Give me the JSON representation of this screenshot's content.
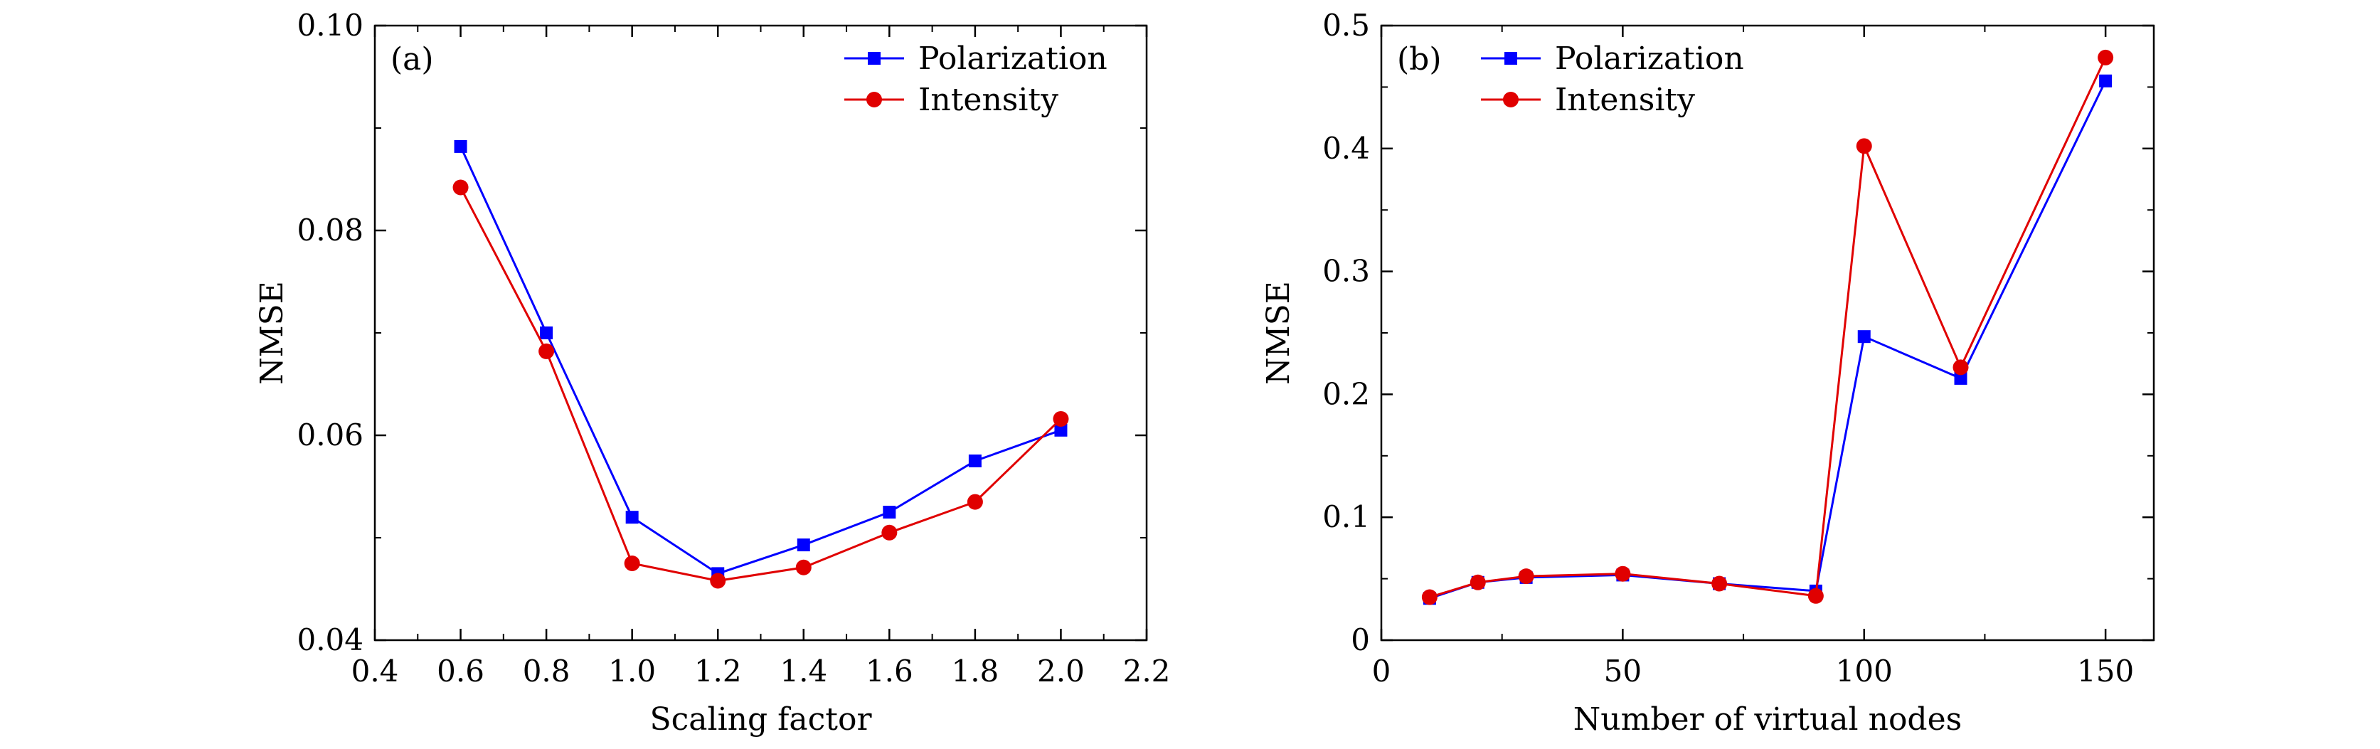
{
  "chart_data": [
    {
      "type": "line",
      "panel_label": "(a)",
      "xlabel": "Scaling factor",
      "ylabel": "NMSE",
      "xlim": [
        0.4,
        2.2
      ],
      "ylim": [
        0.04,
        0.1
      ],
      "xticks": [
        "0.4",
        "0.6",
        "0.8",
        "1.0",
        "1.2",
        "1.4",
        "1.6",
        "1.8",
        "2.0",
        "2.2"
      ],
      "yticks": [
        "0.04",
        "0.06",
        "0.08",
        "0.10"
      ],
      "legend_position": "top-right",
      "grid": false,
      "x": [
        0.6,
        0.8,
        1.0,
        1.2,
        1.4,
        1.6,
        1.8,
        2.0
      ],
      "series": [
        {
          "name": "Polarization",
          "color": "#0000ff",
          "marker": "square",
          "values": [
            0.0882,
            0.07,
            0.052,
            0.0465,
            0.0493,
            0.0525,
            0.0575,
            0.0605
          ]
        },
        {
          "name": "Intensity",
          "color": "#e00000",
          "marker": "circle",
          "values": [
            0.0842,
            0.0682,
            0.0475,
            0.0458,
            0.0471,
            0.0505,
            0.0535,
            0.0616
          ]
        }
      ]
    },
    {
      "type": "line",
      "panel_label": "(b)",
      "xlabel": "Number of virtual nodes",
      "ylabel": "NMSE",
      "xlim": [
        0,
        160
      ],
      "ylim": [
        0,
        0.5
      ],
      "xticks": [
        "0",
        "50",
        "100",
        "150"
      ],
      "yticks": [
        "0",
        "0.1",
        "0.2",
        "0.3",
        "0.4",
        "0.5"
      ],
      "legend_position": "top-left",
      "grid": false,
      "x": [
        10,
        20,
        30,
        50,
        70,
        90,
        100,
        120,
        150
      ],
      "series": [
        {
          "name": "Polarization",
          "color": "#0000ff",
          "marker": "square",
          "values": [
            0.034,
            0.047,
            0.051,
            0.053,
            0.046,
            0.04,
            0.247,
            0.213,
            0.455
          ]
        },
        {
          "name": "Intensity",
          "color": "#e00000",
          "marker": "circle",
          "values": [
            0.035,
            0.047,
            0.052,
            0.054,
            0.046,
            0.036,
            0.402,
            0.222,
            0.474
          ]
        }
      ]
    }
  ]
}
